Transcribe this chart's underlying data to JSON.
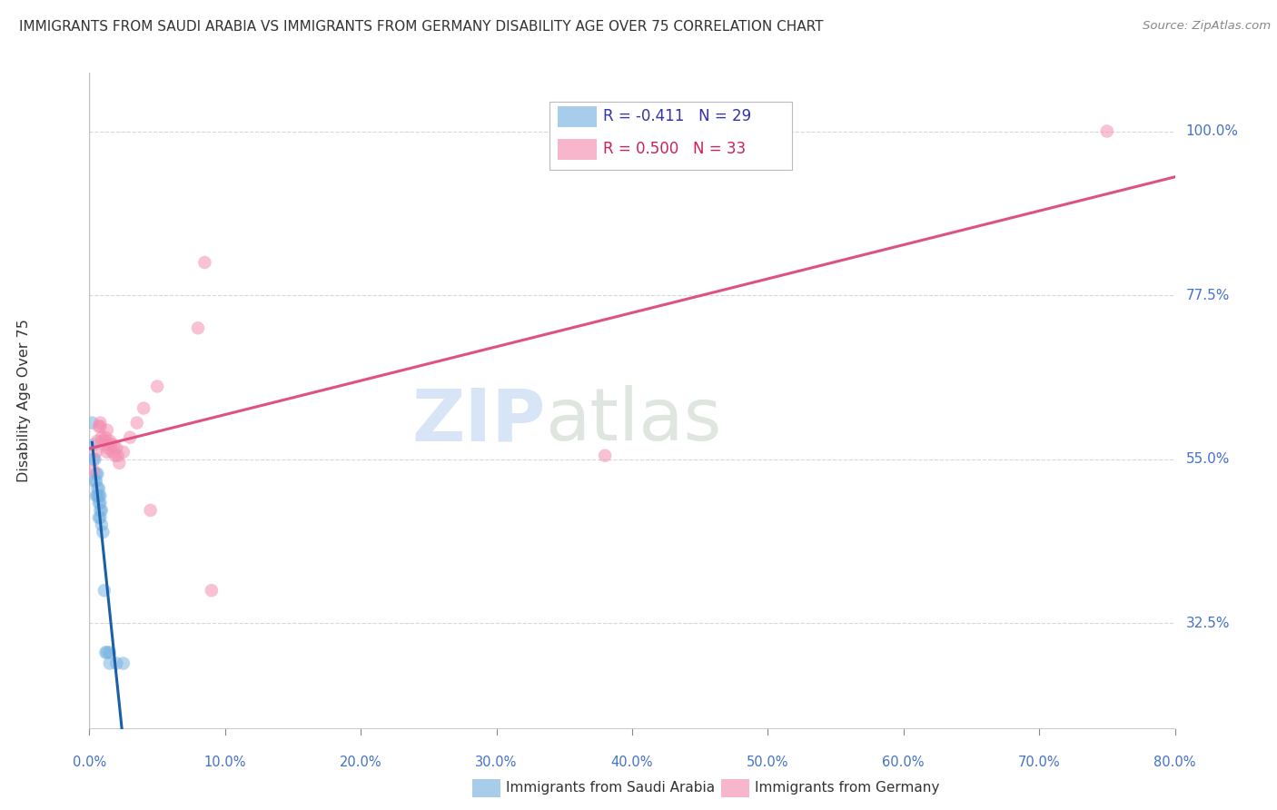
{
  "title": "IMMIGRANTS FROM SAUDI ARABIA VS IMMIGRANTS FROM GERMANY DISABILITY AGE OVER 75 CORRELATION CHART",
  "source": "Source: ZipAtlas.com",
  "ylabel": "Disability Age Over 75",
  "ytick_labels": [
    "32.5%",
    "55.0%",
    "77.5%",
    "100.0%"
  ],
  "ytick_values": [
    0.325,
    0.55,
    0.775,
    1.0
  ],
  "xtick_labels": [
    "0.0%",
    "10.0%",
    "20.0%",
    "30.0%",
    "40.0%",
    "50.0%",
    "60.0%",
    "70.0%",
    "80.0%"
  ],
  "xtick_values": [
    0.0,
    0.1,
    0.2,
    0.3,
    0.4,
    0.5,
    0.6,
    0.7,
    0.8
  ],
  "xlim": [
    0.0,
    0.8
  ],
  "ylim": [
    0.18,
    1.08
  ],
  "bottom_legend": [
    "Immigrants from Saudi Arabia",
    "Immigrants from Germany"
  ],
  "saudi_x": [
    0.002,
    0.003,
    0.003,
    0.004,
    0.004,
    0.005,
    0.005,
    0.005,
    0.006,
    0.006,
    0.006,
    0.007,
    0.007,
    0.007,
    0.007,
    0.008,
    0.008,
    0.008,
    0.008,
    0.009,
    0.009,
    0.01,
    0.011,
    0.012,
    0.013,
    0.015,
    0.015,
    0.02,
    0.025
  ],
  "saudi_y": [
    0.6,
    0.57,
    0.55,
    0.55,
    0.52,
    0.53,
    0.52,
    0.5,
    0.51,
    0.53,
    0.5,
    0.5,
    0.51,
    0.49,
    0.47,
    0.48,
    0.5,
    0.49,
    0.47,
    0.46,
    0.48,
    0.45,
    0.37,
    0.285,
    0.285,
    0.285,
    0.27,
    0.27,
    0.27
  ],
  "germany_x": [
    0.003,
    0.005,
    0.006,
    0.007,
    0.008,
    0.008,
    0.009,
    0.01,
    0.011,
    0.012,
    0.012,
    0.013,
    0.013,
    0.014,
    0.015,
    0.016,
    0.017,
    0.018,
    0.019,
    0.02,
    0.021,
    0.022,
    0.025,
    0.03,
    0.035,
    0.04,
    0.045,
    0.05,
    0.08,
    0.085,
    0.09,
    0.38,
    0.75
  ],
  "germany_y": [
    0.535,
    0.56,
    0.575,
    0.595,
    0.6,
    0.595,
    0.58,
    0.575,
    0.57,
    0.575,
    0.58,
    0.59,
    0.56,
    0.565,
    0.575,
    0.57,
    0.56,
    0.57,
    0.555,
    0.565,
    0.555,
    0.545,
    0.56,
    0.58,
    0.6,
    0.62,
    0.48,
    0.65,
    0.73,
    0.82,
    0.37,
    0.555,
    1.0
  ],
  "saudi_R": -0.411,
  "saudi_N": 29,
  "germany_R": 0.5,
  "germany_N": 33,
  "saudi_color": "#7ab3e0",
  "germany_color": "#f48fb1",
  "saudi_line_color": "#1a5fa8",
  "germany_line_color": "#e05080",
  "background_color": "#ffffff",
  "grid_color": "#d8d8d8"
}
